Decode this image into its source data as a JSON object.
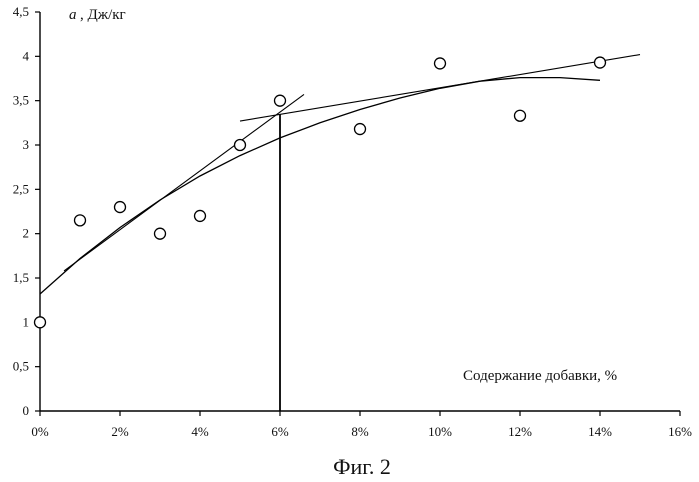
{
  "chart_data": {
    "type": "scatter",
    "caption": "Фиг. 2",
    "ylabel_var": "a",
    "ylabel_unit": ", Дж/кг",
    "xlabel": "Содержание добавки, %",
    "xlim": [
      0,
      16
    ],
    "ylim": [
      0,
      4.5
    ],
    "xticks": [
      {
        "value": 0,
        "label": "0%"
      },
      {
        "value": 2,
        "label": "2%"
      },
      {
        "value": 4,
        "label": "4%"
      },
      {
        "value": 6,
        "label": "6%"
      },
      {
        "value": 8,
        "label": "8%"
      },
      {
        "value": 10,
        "label": "10%"
      },
      {
        "value": 12,
        "label": "12%"
      },
      {
        "value": 14,
        "label": "14%"
      },
      {
        "value": 16,
        "label": "16%"
      }
    ],
    "yticks": [
      {
        "value": 0,
        "label": "0"
      },
      {
        "value": 0.5,
        "label": "0,5"
      },
      {
        "value": 1,
        "label": "1"
      },
      {
        "value": 1.5,
        "label": "1,5"
      },
      {
        "value": 2,
        "label": "2"
      },
      {
        "value": 2.5,
        "label": "2,5"
      },
      {
        "value": 3,
        "label": "3"
      },
      {
        "value": 3.5,
        "label": "3,5"
      },
      {
        "value": 4,
        "label": "4"
      },
      {
        "value": 4.5,
        "label": "4,5"
      }
    ],
    "points": [
      {
        "x": 0,
        "y": 1.0
      },
      {
        "x": 1,
        "y": 2.15
      },
      {
        "x": 2,
        "y": 2.3
      },
      {
        "x": 3,
        "y": 2.0
      },
      {
        "x": 4,
        "y": 2.2
      },
      {
        "x": 5,
        "y": 3.0
      },
      {
        "x": 6,
        "y": 3.5
      },
      {
        "x": 8,
        "y": 3.18
      },
      {
        "x": 10,
        "y": 3.92
      },
      {
        "x": 12,
        "y": 3.33
      },
      {
        "x": 14,
        "y": 3.93
      }
    ],
    "trend_curve": [
      {
        "x": 0,
        "y": 1.32
      },
      {
        "x": 1,
        "y": 1.72
      },
      {
        "x": 2,
        "y": 2.07
      },
      {
        "x": 3,
        "y": 2.38
      },
      {
        "x": 4,
        "y": 2.65
      },
      {
        "x": 5,
        "y": 2.88
      },
      {
        "x": 6,
        "y": 3.08
      },
      {
        "x": 7,
        "y": 3.25
      },
      {
        "x": 8,
        "y": 3.4
      },
      {
        "x": 9,
        "y": 3.53
      },
      {
        "x": 10,
        "y": 3.64
      },
      {
        "x": 11,
        "y": 3.72
      },
      {
        "x": 12,
        "y": 3.76
      },
      {
        "x": 13,
        "y": 3.76
      },
      {
        "x": 14,
        "y": 3.73
      }
    ],
    "tangent_lines": [
      {
        "x1": 0.6,
        "y1": 1.58,
        "x2": 6.6,
        "y2": 3.57
      },
      {
        "x1": 5.0,
        "y1": 3.27,
        "x2": 15.0,
        "y2": 4.02
      }
    ],
    "marker_line": {
      "x": 6,
      "y_from": 0,
      "y_to": 3.35
    }
  }
}
